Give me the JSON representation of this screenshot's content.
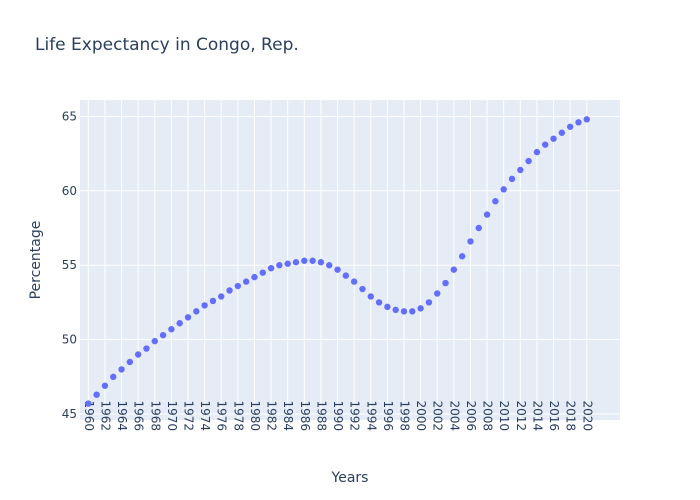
{
  "chart_data": {
    "type": "scatter",
    "title": "Life Expectancy in Congo, Rep.",
    "xlabel": "Years",
    "ylabel": "Percentage",
    "xlim": [
      1959,
      2024
    ],
    "ylim": [
      44.6,
      66.1
    ],
    "x_ticks": [
      1960,
      1962,
      1964,
      1966,
      1968,
      1970,
      1972,
      1974,
      1976,
      1978,
      1980,
      1982,
      1984,
      1986,
      1988,
      1990,
      1992,
      1994,
      1996,
      1998,
      2000,
      2002,
      2004,
      2006,
      2008,
      2010,
      2012,
      2014,
      2016,
      2018,
      2020
    ],
    "y_ticks": [
      45,
      50,
      55,
      60,
      65
    ],
    "grid": true,
    "marker_color": "#636efa",
    "plot_background": "#e5ecf6",
    "series": [
      {
        "x": [
          1960,
          1961,
          1962,
          1963,
          1964,
          1965,
          1966,
          1967,
          1968,
          1969,
          1970,
          1971,
          1972,
          1973,
          1974,
          1975,
          1976,
          1977,
          1978,
          1979,
          1980,
          1981,
          1982,
          1983,
          1984,
          1985,
          1986,
          1987,
          1988,
          1989,
          1990,
          1991,
          1992,
          1993,
          1994,
          1995,
          1996,
          1997,
          1998,
          1999,
          2000,
          2001,
          2002,
          2003,
          2004,
          2005,
          2006,
          2007,
          2008,
          2009,
          2010,
          2011,
          2012,
          2013,
          2014,
          2015,
          2016,
          2017,
          2018,
          2019,
          2020
        ],
        "y": [
          45.7,
          46.3,
          46.9,
          47.5,
          48.0,
          48.5,
          49.0,
          49.4,
          49.9,
          50.3,
          50.7,
          51.1,
          51.5,
          51.9,
          52.3,
          52.6,
          52.9,
          53.3,
          53.6,
          53.9,
          54.2,
          54.5,
          54.8,
          55.0,
          55.1,
          55.2,
          55.3,
          55.3,
          55.2,
          55.0,
          54.7,
          54.3,
          53.9,
          53.4,
          52.9,
          52.5,
          52.2,
          52.0,
          51.9,
          51.9,
          52.1,
          52.5,
          53.1,
          53.8,
          54.7,
          55.6,
          56.6,
          57.5,
          58.4,
          59.3,
          60.1,
          60.8,
          61.4,
          62.0,
          62.6,
          63.1,
          63.5,
          63.9,
          64.3,
          64.6,
          64.8
        ]
      }
    ]
  }
}
